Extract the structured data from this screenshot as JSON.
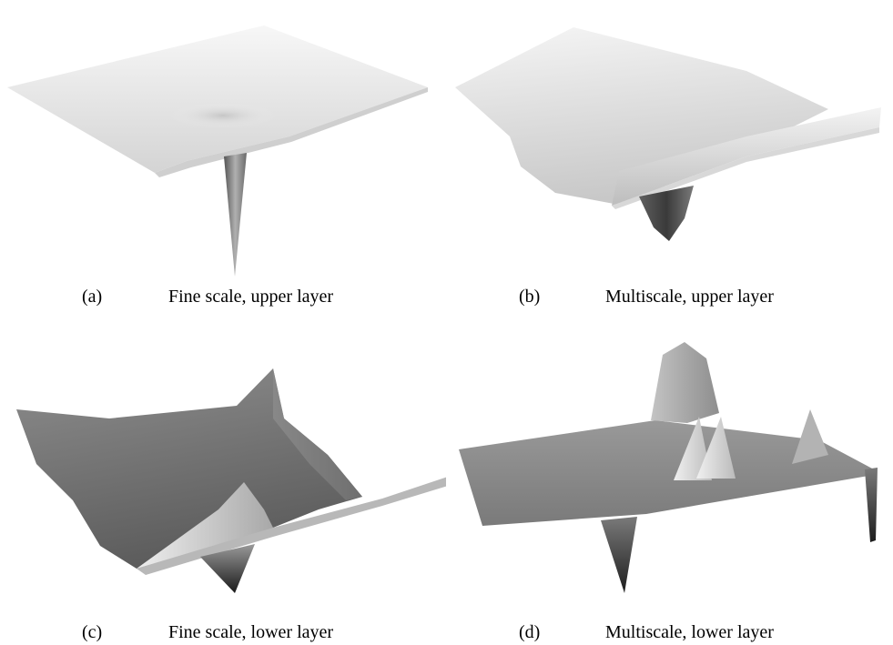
{
  "figure": {
    "panels": [
      {
        "id": "a",
        "letter": "(a)",
        "caption": "Fine scale, upper layer"
      },
      {
        "id": "b",
        "letter": "(b)",
        "caption": "Multiscale, upper layer"
      },
      {
        "id": "c",
        "letter": "(c)",
        "caption": "Fine scale, lower layer"
      },
      {
        "id": "d",
        "letter": "(d)",
        "caption": "Multiscale, lower layer"
      }
    ]
  }
}
